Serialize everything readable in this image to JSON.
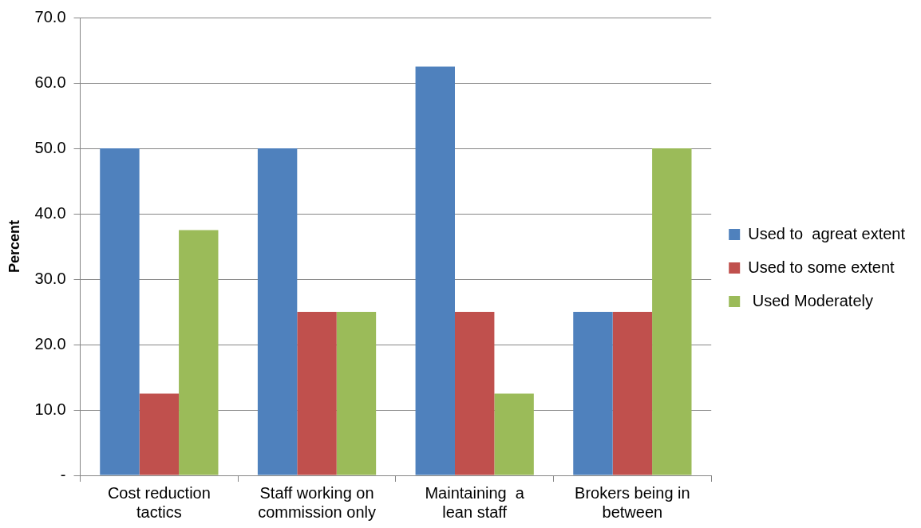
{
  "chart_data": {
    "type": "bar",
    "ylabel": "Percent",
    "categories": [
      "Cost reduction tactics",
      "Staff working on commission only",
      "Maintaining  a lean staff",
      "Brokers being in between"
    ],
    "series": [
      {
        "name": "Used to  agreat extent",
        "color": "#4f81bd",
        "values": [
          50,
          50,
          62.5,
          25
        ]
      },
      {
        "name": "Used to some extent",
        "color": "#c0504d",
        "values": [
          12.5,
          25,
          25,
          25
        ]
      },
      {
        "name": " Used Moderately",
        "color": "#9bbb59",
        "values": [
          37.5,
          25,
          12.5,
          50
        ]
      }
    ],
    "ylim": [
      0,
      70
    ],
    "yticks": [
      {
        "value": 0,
        "label": "-"
      },
      {
        "value": 10,
        "label": "10.0"
      },
      {
        "value": 20,
        "label": "20.0"
      },
      {
        "value": 30,
        "label": "30.0"
      },
      {
        "value": 40,
        "label": "40.0"
      },
      {
        "value": 50,
        "label": "50.0"
      },
      {
        "value": 60,
        "label": "60.0"
      },
      {
        "value": 70,
        "label": "70.0"
      }
    ],
    "grid": "y",
    "legend": "right"
  }
}
